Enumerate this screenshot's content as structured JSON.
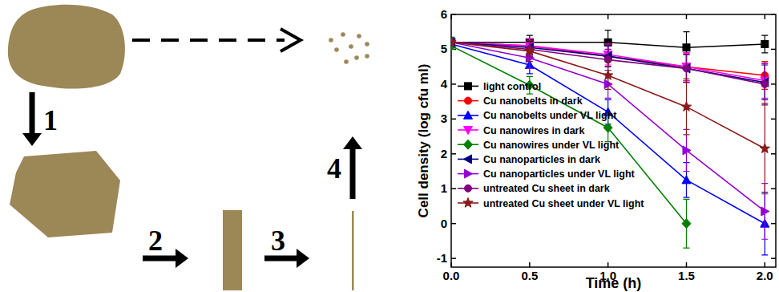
{
  "chart_data": {
    "type": "line",
    "x_label": "Time (h)",
    "y_label": "Cell density (log cfu ml)",
    "x": [
      0,
      0.5,
      1,
      1.5,
      2
    ],
    "xlim": [
      0,
      2.07
    ],
    "xticks": [
      {
        "value": 0,
        "label": "0.0"
      },
      0.5,
      {
        "value": 1,
        "label": "1.0"
      },
      1.5,
      {
        "value": 2,
        "label": "2.0"
      }
    ],
    "ylim": [
      -1.25,
      6
    ],
    "yticks": [
      -1,
      0,
      1,
      2,
      3,
      4,
      5,
      6
    ],
    "grid": false,
    "legend": "lower left",
    "series": [
      {
        "name": "light control",
        "color": "#000000",
        "marker": "square",
        "values": [
          5.2,
          5.2,
          5.2,
          5.05,
          5.15
        ],
        "errors": [
          0.15,
          0.2,
          0.35,
          0.45,
          0.25
        ]
      },
      {
        "name": "Cu nanobelts in dark",
        "color": "#ff0000",
        "marker": "circle",
        "values": [
          5.2,
          5.1,
          4.8,
          4.5,
          4.25
        ],
        "errors": [
          0.1,
          0.2,
          0.3,
          0.4,
          0.4
        ]
      },
      {
        "name": "Cu nanobelts under VL light",
        "color": "#0000ff",
        "marker": "triangle-up",
        "values": [
          5.15,
          4.55,
          3.2,
          1.25,
          0.0
        ],
        "errors": [
          0.1,
          0.25,
          0.35,
          0.5,
          0.9
        ]
      },
      {
        "name": "Cu nanowires in dark",
        "color": "#ff00ff",
        "marker": "triangle-down",
        "values": [
          5.2,
          5.1,
          4.85,
          4.5,
          4.1
        ],
        "errors": [
          0.1,
          0.2,
          0.3,
          0.4,
          0.5
        ]
      },
      {
        "name": "Cu nanowires  under VL light",
        "color": "#008000",
        "marker": "diamond",
        "values": [
          5.1,
          3.97,
          2.75,
          0.0,
          null
        ],
        "errors": [
          0.1,
          0.25,
          0.4,
          0.7,
          null
        ]
      },
      {
        "name": "Cu nanoparticles  in dark",
        "color": "#000080",
        "marker": "triangle-left",
        "values": [
          5.2,
          5.05,
          4.8,
          4.45,
          4.05
        ],
        "errors": [
          0.1,
          0.2,
          0.3,
          0.4,
          0.5
        ]
      },
      {
        "name": "Cu nanoparticles under VL light",
        "color": "#9400d3",
        "marker": "triangle-right",
        "values": [
          5.2,
          4.75,
          4.0,
          2.1,
          0.35
        ],
        "errors": [
          0.1,
          0.3,
          0.4,
          0.6,
          0.8
        ]
      },
      {
        "name": "untreated Cu sheet in dark",
        "color": "#800080",
        "marker": "circle",
        "values": [
          5.2,
          5.0,
          4.7,
          4.45,
          4.0
        ],
        "errors": [
          0.1,
          0.2,
          0.3,
          0.4,
          0.6
        ]
      },
      {
        "name": "untreated Cu sheet under VL light",
        "color": "#8b1a1a",
        "marker": "star",
        "values": [
          5.2,
          4.95,
          4.25,
          3.35,
          2.15
        ],
        "errors": [
          0.1,
          0.3,
          0.4,
          0.8,
          1.3
        ]
      }
    ]
  },
  "diagram": {
    "steps": [
      {
        "label": "1"
      },
      {
        "label": "2"
      },
      {
        "label": "3"
      },
      {
        "label": "4"
      }
    ]
  }
}
